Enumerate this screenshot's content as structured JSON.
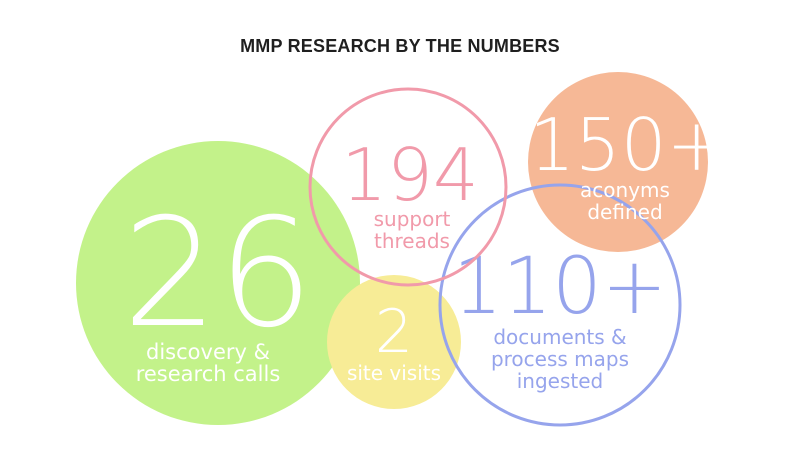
{
  "title": "MMP RESEARCH BY THE NUMBERS",
  "colors": {
    "green": "#c3f28a",
    "yellow": "#f7ec96",
    "pink": "#f19aaa",
    "blue": "#96a4ec",
    "orange": "#f6b896",
    "white": "#ffffff"
  },
  "stats": {
    "discovery": {
      "value": "26",
      "label_line1": "discovery &",
      "label_line2": "research calls"
    },
    "visits": {
      "value": "2",
      "label_line1": "site visits"
    },
    "threads": {
      "value": "194",
      "label_line1": "support",
      "label_line2": "threads"
    },
    "documents": {
      "value": "110+",
      "label_line1": "documents &",
      "label_line2": "process maps",
      "label_line3": "ingested"
    },
    "acronyms": {
      "value": "150+",
      "label_line1": "aconyms",
      "label_line2": "defined"
    }
  }
}
